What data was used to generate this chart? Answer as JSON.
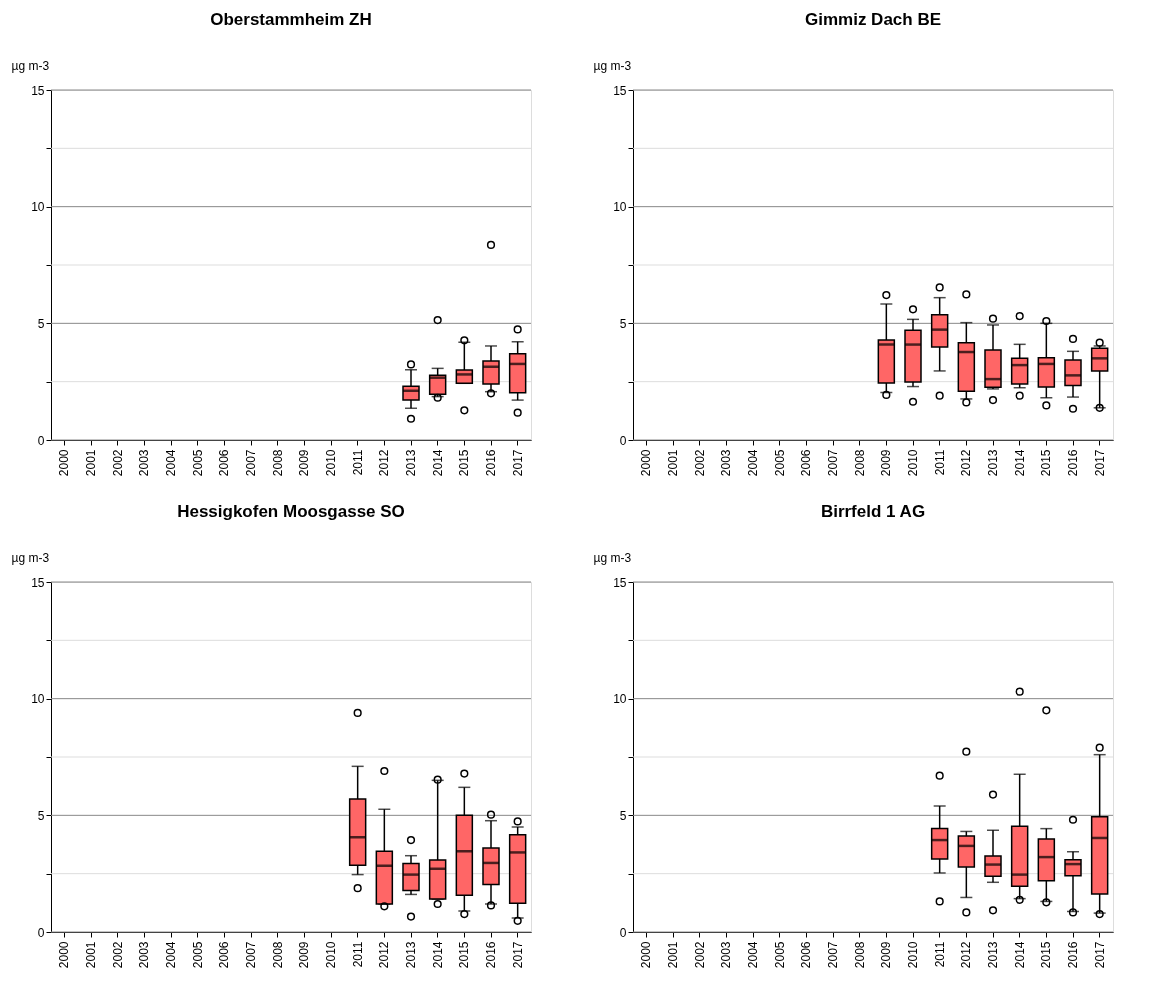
{
  "chart_data": [
    {
      "type": "box",
      "title": "Oberstammheim ZH",
      "ylabel": "µg m-3",
      "color": "#ff6666",
      "grid": true,
      "ylim": [
        0,
        15
      ],
      "yticks": [
        0,
        {
          "value": 2.5,
          "label": null
        },
        5,
        {
          "value": 7.5,
          "label": null
        },
        10,
        {
          "value": 12.5,
          "label": null
        },
        15
      ],
      "categories": [
        "2000",
        "2001",
        "2002",
        "2003",
        "2004",
        "2005",
        "2006",
        "2007",
        "2008",
        "2009",
        "2010",
        "2011",
        "2012",
        "2013",
        "2014",
        "2015",
        "2016",
        "2017"
      ],
      "boxes": [
        null,
        null,
        null,
        null,
        null,
        null,
        null,
        null,
        null,
        null,
        null,
        null,
        null,
        {
          "low": 1.36,
          "q1": 1.71,
          "median": 2.11,
          "q3": 2.3,
          "high": 3.01,
          "outliers": [
            3.24,
            0.91
          ]
        },
        {
          "low": 1.86,
          "q1": 1.96,
          "median": 2.67,
          "q3": 2.77,
          "high": 3.07,
          "outliers": [
            5.14,
            1.81
          ]
        },
        {
          "low": 2.43,
          "q1": 2.43,
          "median": 2.81,
          "q3": 3.0,
          "high": 4.19,
          "outliers": [
            4.27,
            1.27
          ]
        },
        {
          "low": 2.07,
          "q1": 2.4,
          "median": 3.14,
          "q3": 3.39,
          "high": 4.03,
          "outliers": [
            8.36,
            2.0
          ]
        },
        {
          "low": 1.71,
          "q1": 2.03,
          "median": 3.26,
          "q3": 3.7,
          "high": 4.21,
          "outliers": [
            4.74,
            1.17
          ]
        }
      ]
    },
    {
      "type": "box",
      "title": "Gimmiz Dach BE",
      "ylabel": "µg m-3",
      "color": "#ff6666",
      "grid": true,
      "ylim": [
        0,
        15
      ],
      "yticks": [
        0,
        {
          "value": 2.5,
          "label": null
        },
        5,
        {
          "value": 7.5,
          "label": null
        },
        10,
        {
          "value": 12.5,
          "label": null
        },
        15
      ],
      "categories": [
        "2000",
        "2001",
        "2002",
        "2003",
        "2004",
        "2005",
        "2006",
        "2007",
        "2008",
        "2009",
        "2010",
        "2011",
        "2012",
        "2013",
        "2014",
        "2015",
        "2016",
        "2017"
      ],
      "boxes": [
        null,
        null,
        null,
        null,
        null,
        null,
        null,
        null,
        null,
        {
          "low": 2.04,
          "q1": 2.44,
          "median": 4.09,
          "q3": 4.29,
          "high": 5.83,
          "outliers": [
            6.21,
            1.93
          ]
        },
        {
          "low": 2.29,
          "q1": 2.49,
          "median": 4.09,
          "q3": 4.7,
          "high": 5.17,
          "outliers": [
            5.6,
            1.64
          ]
        },
        {
          "low": 2.96,
          "q1": 3.99,
          "median": 4.73,
          "q3": 5.37,
          "high": 6.1,
          "outliers": [
            6.54,
            1.9
          ]
        },
        {
          "low": 1.76,
          "q1": 2.09,
          "median": 3.77,
          "q3": 4.17,
          "high": 5.03,
          "outliers": [
            6.24,
            1.61
          ]
        },
        {
          "low": 2.19,
          "q1": 2.26,
          "median": 2.61,
          "q3": 3.86,
          "high": 4.93,
          "outliers": [
            5.2,
            1.71
          ]
        },
        {
          "low": 2.24,
          "q1": 2.4,
          "median": 3.21,
          "q3": 3.5,
          "high": 4.1,
          "outliers": [
            5.31,
            1.9
          ]
        },
        {
          "low": 1.81,
          "q1": 2.27,
          "median": 3.26,
          "q3": 3.53,
          "high": 5.0,
          "outliers": [
            5.1,
            1.48
          ]
        },
        {
          "low": 1.84,
          "q1": 2.34,
          "median": 2.77,
          "q3": 3.43,
          "high": 3.8,
          "outliers": [
            4.33,
            1.34
          ]
        },
        {
          "low": 1.38,
          "q1": 2.96,
          "median": 3.5,
          "q3": 3.93,
          "high": 4.03,
          "outliers": [
            4.17,
            1.38
          ]
        }
      ]
    },
    {
      "type": "box",
      "title": "Hessigkofen Moosgasse SO",
      "ylabel": "µg m-3",
      "color": "#ff6666",
      "grid": true,
      "ylim": [
        0,
        15
      ],
      "yticks": [
        0,
        {
          "value": 2.5,
          "label": null
        },
        5,
        {
          "value": 7.5,
          "label": null
        },
        10,
        {
          "value": 12.5,
          "label": null
        },
        15
      ],
      "categories": [
        "2000",
        "2001",
        "2002",
        "2003",
        "2004",
        "2005",
        "2006",
        "2007",
        "2008",
        "2009",
        "2010",
        "2011",
        "2012",
        "2013",
        "2014",
        "2015",
        "2016",
        "2017"
      ],
      "boxes": [
        null,
        null,
        null,
        null,
        null,
        null,
        null,
        null,
        null,
        null,
        null,
        {
          "low": 2.46,
          "q1": 2.86,
          "median": 4.06,
          "q3": 5.7,
          "high": 7.1,
          "outliers": [
            9.39,
            1.88
          ]
        },
        {
          "low": 1.2,
          "q1": 1.2,
          "median": 2.84,
          "q3": 3.46,
          "high": 5.26,
          "outliers": [
            6.9,
            1.1
          ]
        },
        {
          "low": 1.61,
          "q1": 1.78,
          "median": 2.46,
          "q3": 2.94,
          "high": 3.27,
          "outliers": [
            3.94,
            0.66
          ]
        },
        {
          "low": 1.41,
          "q1": 1.41,
          "median": 2.71,
          "q3": 3.09,
          "high": 6.5,
          "outliers": [
            6.53,
            1.2
          ]
        },
        {
          "low": 0.9,
          "q1": 1.57,
          "median": 3.46,
          "q3": 5.0,
          "high": 6.2,
          "outliers": [
            6.79,
            0.77
          ]
        },
        {
          "low": 1.2,
          "q1": 2.04,
          "median": 2.96,
          "q3": 3.6,
          "high": 4.77,
          "outliers": [
            5.03,
            1.14
          ]
        },
        {
          "low": 0.6,
          "q1": 1.23,
          "median": 3.41,
          "q3": 4.17,
          "high": 4.5,
          "outliers": [
            4.74,
            0.48
          ]
        }
      ]
    },
    {
      "type": "box",
      "title": "Birrfeld 1 AG",
      "ylabel": "µg m-3",
      "color": "#ff6666",
      "grid": true,
      "ylim": [
        0,
        15
      ],
      "yticks": [
        0,
        {
          "value": 2.5,
          "label": null
        },
        5,
        {
          "value": 7.5,
          "label": null
        },
        10,
        {
          "value": 12.5,
          "label": null
        },
        15
      ],
      "categories": [
        "2000",
        "2001",
        "2002",
        "2003",
        "2004",
        "2005",
        "2006",
        "2007",
        "2008",
        "2009",
        "2010",
        "2011",
        "2012",
        "2013",
        "2014",
        "2015",
        "2016",
        "2017"
      ],
      "boxes": [
        null,
        null,
        null,
        null,
        null,
        null,
        null,
        null,
        null,
        null,
        null,
        {
          "low": 2.53,
          "q1": 3.13,
          "median": 3.94,
          "q3": 4.44,
          "high": 5.4,
          "outliers": [
            6.7,
            1.31
          ]
        },
        {
          "low": 1.48,
          "q1": 2.79,
          "median": 3.69,
          "q3": 4.11,
          "high": 4.31,
          "outliers": [
            7.73,
            0.84
          ]
        },
        {
          "low": 2.13,
          "q1": 2.39,
          "median": 2.89,
          "q3": 3.26,
          "high": 4.36,
          "outliers": [
            5.89,
            0.93
          ]
        },
        {
          "low": 1.43,
          "q1": 1.96,
          "median": 2.46,
          "q3": 4.53,
          "high": 6.76,
          "outliers": [
            10.3,
            1.38
          ]
        },
        {
          "low": 1.31,
          "q1": 2.2,
          "median": 3.21,
          "q3": 3.99,
          "high": 4.43,
          "outliers": [
            9.5,
            1.27
          ]
        },
        {
          "low": 0.88,
          "q1": 2.41,
          "median": 2.91,
          "q3": 3.1,
          "high": 3.44,
          "outliers": [
            4.81,
            0.84
          ]
        },
        {
          "low": 0.81,
          "q1": 1.63,
          "median": 4.03,
          "q3": 4.94,
          "high": 7.6,
          "outliers": [
            7.9,
            0.77
          ]
        }
      ]
    }
  ]
}
